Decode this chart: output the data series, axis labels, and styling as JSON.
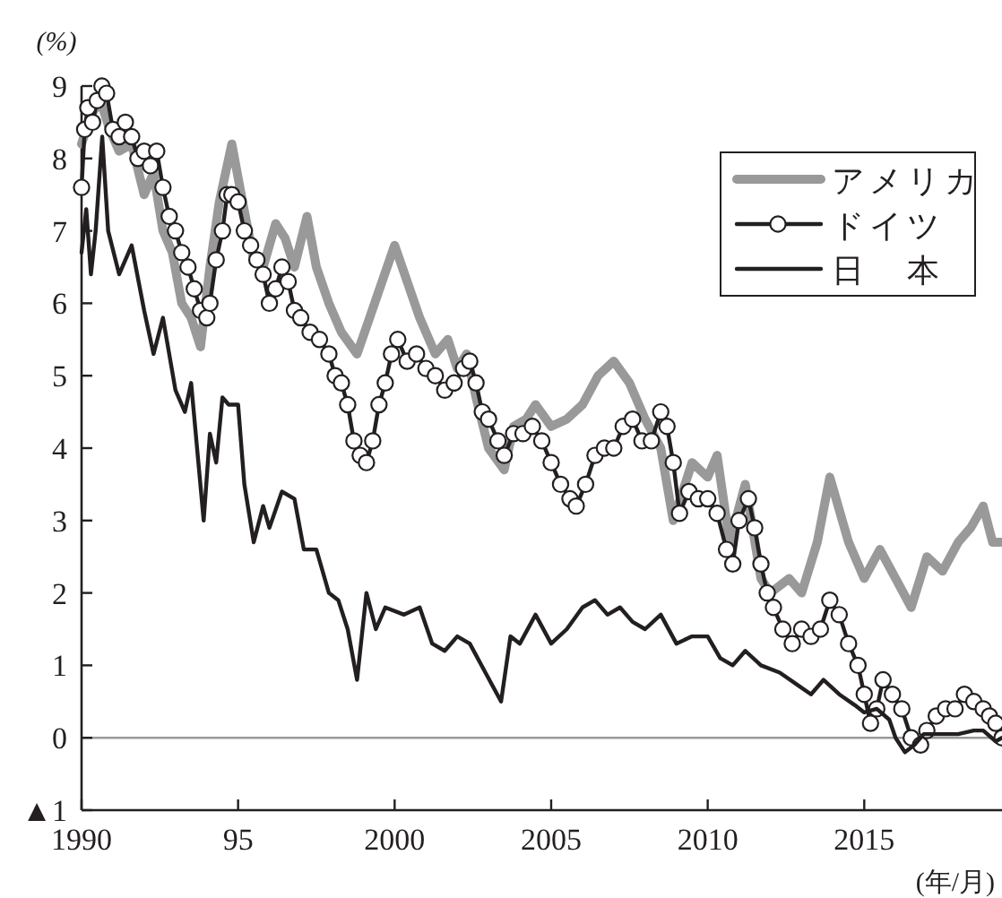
{
  "chart_data": {
    "type": "line",
    "ylabel": "(%)",
    "xlabel": "(年/月)",
    "xlim": [
      1990,
      2019.4
    ],
    "ylim": [
      -1,
      9
    ],
    "xticks": [
      1990,
      {
        "value": 1995,
        "label": "95"
      },
      2000,
      2005,
      2010,
      2015
    ],
    "yticks": [
      {
        "value": -1,
        "label": "▲1"
      },
      0,
      1,
      2,
      3,
      4,
      5,
      6,
      7,
      8,
      9
    ],
    "legend": "top right",
    "grid": false,
    "ref_lines": [
      {
        "axis": "y",
        "value": 0,
        "color": "#999999"
      }
    ],
    "series": [
      {
        "name": "アメリカ",
        "color": "#999999",
        "marker": "none",
        "x": [
          1990.0,
          1990.3,
          1990.6,
          1990.9,
          1991.2,
          1991.6,
          1992.0,
          1992.3,
          1992.6,
          1992.9,
          1993.2,
          1993.5,
          1993.8,
          1994.1,
          1994.4,
          1994.8,
          1995.1,
          1995.5,
          1995.8,
          1996.2,
          1996.5,
          1996.8,
          1997.2,
          1997.5,
          1997.9,
          1998.3,
          1998.8,
          1999.2,
          1999.6,
          2000.0,
          2000.4,
          2000.8,
          2001.3,
          2001.7,
          2002.0,
          2002.3,
          2002.6,
          2003.0,
          2003.5,
          2003.8,
          2004.2,
          2004.5,
          2005.0,
          2005.5,
          2006.0,
          2006.5,
          2007.0,
          2007.5,
          2008.0,
          2008.5,
          2008.9,
          2009.5,
          2010.0,
          2010.3,
          2010.7,
          2011.2,
          2011.7,
          2012.0,
          2012.6,
          2013.0,
          2013.5,
          2013.9,
          2014.5,
          2015.0,
          2015.5,
          2016.0,
          2016.5,
          2017.0,
          2017.5,
          2018.0,
          2018.4,
          2018.8,
          2019.1,
          2019.4
        ],
        "values": [
          8.2,
          8.6,
          8.8,
          8.4,
          8.1,
          8.2,
          7.5,
          7.8,
          7.0,
          6.7,
          6.0,
          5.8,
          5.4,
          6.5,
          7.4,
          8.2,
          7.5,
          6.6,
          6.5,
          7.1,
          6.9,
          6.5,
          7.2,
          6.5,
          6.0,
          5.6,
          5.3,
          5.8,
          6.3,
          6.8,
          6.3,
          5.8,
          5.3,
          5.5,
          5.1,
          5.3,
          4.7,
          4.0,
          3.7,
          4.3,
          4.4,
          4.6,
          4.3,
          4.4,
          4.6,
          5.0,
          5.2,
          4.9,
          4.4,
          4.0,
          3.0,
          3.8,
          3.6,
          3.9,
          2.7,
          3.5,
          2.2,
          2.0,
          2.2,
          2.0,
          2.7,
          3.6,
          2.7,
          2.2,
          2.6,
          2.2,
          1.8,
          2.5,
          2.3,
          2.7,
          2.9,
          3.2,
          2.7,
          2.7
        ]
      },
      {
        "name": "ドイツ",
        "color": "#231f20",
        "marker": "circle",
        "x": [
          1990.0,
          1990.1,
          1990.2,
          1990.35,
          1990.5,
          1990.65,
          1990.8,
          1991.0,
          1991.2,
          1991.4,
          1991.6,
          1991.8,
          1992.0,
          1992.2,
          1992.4,
          1992.6,
          1992.8,
          1993.0,
          1993.2,
          1993.4,
          1993.6,
          1993.8,
          1994.0,
          1994.1,
          1994.3,
          1994.5,
          1994.65,
          1994.8,
          1995.0,
          1995.2,
          1995.4,
          1995.6,
          1995.8,
          1996.0,
          1996.2,
          1996.4,
          1996.6,
          1996.8,
          1997.0,
          1997.3,
          1997.6,
          1997.9,
          1998.1,
          1998.3,
          1998.5,
          1998.7,
          1998.9,
          1999.1,
          1999.3,
          1999.5,
          1999.7,
          1999.9,
          2000.1,
          2000.4,
          2000.7,
          2001.0,
          2001.3,
          2001.6,
          2001.9,
          2002.2,
          2002.4,
          2002.6,
          2002.8,
          2003.0,
          2003.3,
          2003.5,
          2003.8,
          2004.1,
          2004.4,
          2004.7,
          2005.0,
          2005.3,
          2005.6,
          2005.8,
          2006.1,
          2006.4,
          2006.7,
          2007.0,
          2007.3,
          2007.6,
          2007.9,
          2008.2,
          2008.5,
          2008.7,
          2008.9,
          2009.1,
          2009.4,
          2009.7,
          2010.0,
          2010.3,
          2010.6,
          2010.8,
          2011.0,
          2011.3,
          2011.5,
          2011.7,
          2011.9,
          2012.1,
          2012.4,
          2012.7,
          2013.0,
          2013.3,
          2013.6,
          2013.9,
          2014.2,
          2014.5,
          2014.8,
          2015.0,
          2015.2,
          2015.4,
          2015.6,
          2015.9,
          2016.2,
          2016.5,
          2016.8,
          2017.0,
          2017.3,
          2017.6,
          2017.9,
          2018.2,
          2018.5,
          2018.8,
          2019.0,
          2019.2,
          2019.4
        ],
        "values": [
          7.6,
          8.4,
          8.7,
          8.5,
          8.8,
          9.0,
          8.9,
          8.4,
          8.3,
          8.5,
          8.3,
          8.0,
          8.1,
          7.9,
          8.1,
          7.6,
          7.2,
          7.0,
          6.7,
          6.5,
          6.2,
          5.9,
          5.8,
          6.0,
          6.6,
          7.0,
          7.5,
          7.5,
          7.4,
          7.0,
          6.8,
          6.6,
          6.4,
          6.0,
          6.2,
          6.5,
          6.3,
          5.9,
          5.8,
          5.6,
          5.5,
          5.3,
          5.0,
          4.9,
          4.6,
          4.1,
          3.9,
          3.8,
          4.1,
          4.6,
          4.9,
          5.3,
          5.5,
          5.2,
          5.3,
          5.1,
          5.0,
          4.8,
          4.9,
          5.1,
          5.2,
          4.9,
          4.5,
          4.4,
          4.1,
          3.9,
          4.2,
          4.2,
          4.3,
          4.1,
          3.8,
          3.5,
          3.3,
          3.2,
          3.5,
          3.9,
          4.0,
          4.0,
          4.3,
          4.4,
          4.1,
          4.1,
          4.5,
          4.3,
          3.8,
          3.1,
          3.4,
          3.3,
          3.3,
          3.1,
          2.6,
          2.4,
          3.0,
          3.3,
          2.9,
          2.4,
          2.0,
          1.8,
          1.5,
          1.3,
          1.5,
          1.4,
          1.5,
          1.9,
          1.7,
          1.3,
          1.0,
          0.6,
          0.2,
          0.4,
          0.8,
          0.6,
          0.4,
          0.0,
          -0.1,
          0.1,
          0.3,
          0.4,
          0.4,
          0.6,
          0.5,
          0.4,
          0.3,
          0.2,
          0.0
        ]
      },
      {
        "name": "日　本",
        "color": "#231f20",
        "marker": "none",
        "x": [
          1990.0,
          1990.15,
          1990.3,
          1990.45,
          1990.66,
          1990.85,
          1991.2,
          1991.6,
          1992.0,
          1992.3,
          1992.6,
          1993.0,
          1993.3,
          1993.5,
          1993.9,
          1994.1,
          1994.3,
          1994.5,
          1994.7,
          1995.0,
          1995.2,
          1995.5,
          1995.8,
          1996.0,
          1996.4,
          1996.8,
          1997.1,
          1997.5,
          1997.9,
          1998.2,
          1998.5,
          1998.8,
          1999.1,
          1999.4,
          1999.7,
          2000.3,
          2000.8,
          2001.2,
          2001.6,
          2002.0,
          2002.4,
          2002.9,
          2003.4,
          2003.7,
          2004.0,
          2004.5,
          2005.0,
          2005.5,
          2006.0,
          2006.4,
          2006.8,
          2007.2,
          2007.6,
          2008.0,
          2008.5,
          2009.0,
          2009.5,
          2010.0,
          2010.4,
          2010.8,
          2011.2,
          2011.7,
          2012.3,
          2012.8,
          2013.3,
          2013.7,
          2014.2,
          2014.7,
          2015.0,
          2015.4,
          2015.8,
          2016.0,
          2016.3,
          2016.6,
          2016.9,
          2017.5,
          2018.0,
          2018.5,
          2018.8,
          2019.2,
          2019.4
        ],
        "values": [
          6.7,
          7.3,
          6.4,
          7.0,
          8.3,
          7.0,
          6.4,
          6.8,
          5.9,
          5.3,
          5.8,
          4.8,
          4.5,
          4.9,
          3.0,
          4.2,
          3.8,
          4.7,
          4.6,
          4.6,
          3.5,
          2.7,
          3.2,
          2.9,
          3.4,
          3.3,
          2.6,
          2.6,
          2.0,
          1.9,
          1.5,
          0.8,
          2.0,
          1.5,
          1.8,
          1.7,
          1.8,
          1.3,
          1.2,
          1.4,
          1.3,
          0.9,
          0.5,
          1.4,
          1.3,
          1.7,
          1.3,
          1.5,
          1.8,
          1.9,
          1.7,
          1.8,
          1.6,
          1.5,
          1.7,
          1.3,
          1.4,
          1.4,
          1.1,
          1.0,
          1.2,
          1.0,
          0.9,
          0.75,
          0.6,
          0.8,
          0.6,
          0.45,
          0.35,
          0.4,
          0.25,
          0.0,
          -0.2,
          -0.1,
          0.05,
          0.05,
          0.05,
          0.1,
          0.1,
          -0.05,
          0.0
        ]
      }
    ]
  }
}
